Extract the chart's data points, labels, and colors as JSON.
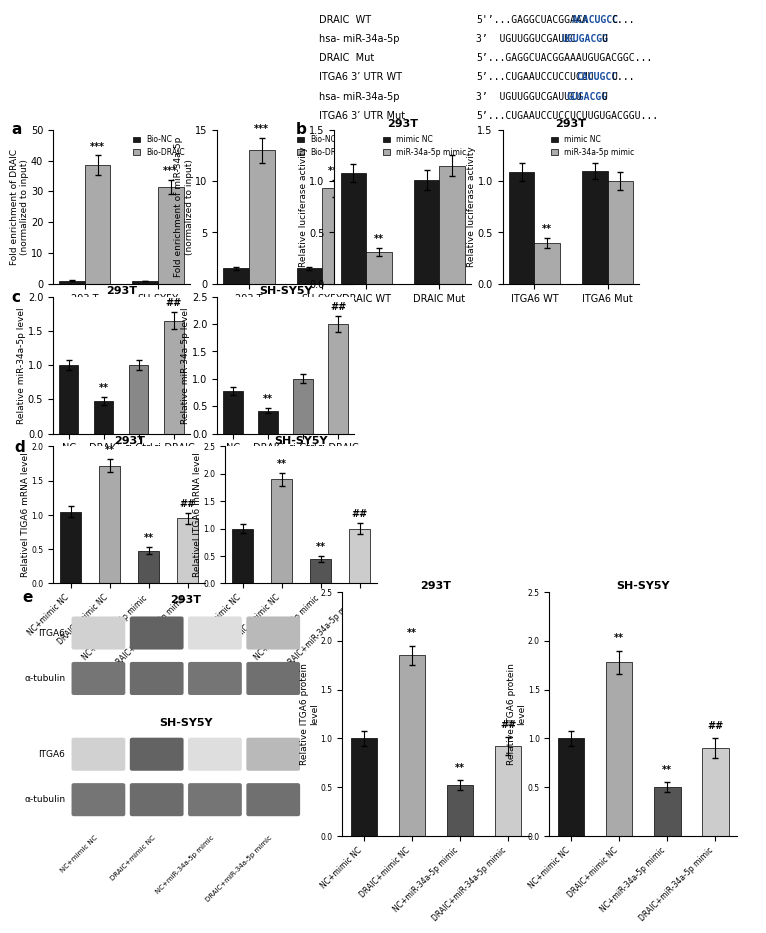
{
  "top_text_lines": [
    {
      "label": "DRAIC  WT",
      "prefix": "5'’...GAGGCUACGGAAA",
      "highlight": "ACACUGCC",
      "suffix": "C...",
      "hl_color": "#1a4fa0"
    },
    {
      "label": "hsa- miR-34a-5p",
      "prefix": "3’  UGUUGGUCGAUUC",
      "highlight": "UGUGACGG",
      "suffix": "U",
      "hl_color": "#1a4fa0"
    },
    {
      "label": "DRAIC  Mut",
      "prefix": "5’...GAGGCUACGGAAAUGUGACGGC...",
      "highlight": "",
      "suffix": "",
      "hl_color": "#1a4fa0"
    },
    {
      "label": "ITGA6 3’ UTR WT",
      "prefix": "5’...CUGAAUCCUCCUCUU",
      "highlight": "CACUGCC",
      "suffix": "U...",
      "hl_color": "#1a4fa0"
    },
    {
      "label": "hsa- miR-34a-5p",
      "prefix": "3’  UGUUGGUCGAUUCU",
      "highlight": "GUGACGG",
      "suffix": "U",
      "hl_color": "#1a4fa0"
    },
    {
      "label": "ITGA6 3’ UTR Mut",
      "prefix": "5’...CUGAAUCCUCCUCUUGUGACGGU...",
      "highlight": "",
      "suffix": "",
      "hl_color": "#1a4fa0"
    }
  ],
  "panel_a_left": {
    "ylabel": "Fold enrichment of DRAIC\n(normalized to input)",
    "groups": [
      "293 T",
      "SH-SY5Y"
    ],
    "bar0_label": "Bio-NC",
    "bar0_color": "#1a1a1a",
    "bar1_label": "Bio-DRAIC",
    "bar1_color": "#aaaaaa",
    "bar0_vals": [
      1.0,
      0.85
    ],
    "bar1_vals": [
      38.5,
      31.5
    ],
    "bar0_errs": [
      0.1,
      0.08
    ],
    "bar1_errs": [
      3.2,
      2.2
    ],
    "ylim": [
      0,
      50
    ],
    "yticks": [
      0,
      10,
      20,
      30,
      40,
      50
    ],
    "stars1": [
      "***",
      "***"
    ]
  },
  "panel_a_right": {
    "ylabel": "Fold enrichment of miR-34a-5p\n(normalized to input)",
    "groups": [
      "293 T",
      "SH-SY5Y"
    ],
    "bar0_label": "Bio-NC",
    "bar0_color": "#1a1a1a",
    "bar1_label": "Bio-DRAIC",
    "bar1_color": "#aaaaaa",
    "bar0_vals": [
      1.5,
      1.5
    ],
    "bar1_vals": [
      13.0,
      9.3
    ],
    "bar0_errs": [
      0.15,
      0.12
    ],
    "bar1_errs": [
      1.2,
      0.8
    ],
    "ylim": [
      0,
      15
    ],
    "yticks": [
      0,
      5,
      10,
      15
    ],
    "stars1": [
      "***",
      "***"
    ]
  },
  "panel_b_left": {
    "title": "293T",
    "ylabel": "Relative luciferase activity",
    "groups": [
      "DRAIC WT",
      "DRAIC Mut"
    ],
    "bar0_label": "mimic NC",
    "bar0_color": "#1a1a1a",
    "bar1_label": "miR-34a-5p mimic",
    "bar1_color": "#aaaaaa",
    "bar0_vals": [
      1.08,
      1.01
    ],
    "bar1_vals": [
      0.31,
      1.15
    ],
    "bar0_errs": [
      0.09,
      0.1
    ],
    "bar1_errs": [
      0.04,
      0.1
    ],
    "ylim": [
      0,
      1.5
    ],
    "yticks": [
      0.0,
      0.5,
      1.0,
      1.5
    ],
    "stars1": [
      "**",
      null
    ]
  },
  "panel_b_right": {
    "title": "293T",
    "ylabel": "Relative luciferase activity",
    "groups": [
      "ITGA6 WT",
      "ITGA6 Mut"
    ],
    "bar0_label": "mimic NC",
    "bar0_color": "#1a1a1a",
    "bar1_label": "miR-34a-5p mimic",
    "bar1_color": "#aaaaaa",
    "bar0_vals": [
      1.09,
      1.1
    ],
    "bar1_vals": [
      0.4,
      1.0
    ],
    "bar0_errs": [
      0.09,
      0.08
    ],
    "bar1_errs": [
      0.05,
      0.09
    ],
    "ylim": [
      0,
      1.5
    ],
    "yticks": [
      0.0,
      0.5,
      1.0,
      1.5
    ],
    "stars1": [
      "**",
      null
    ]
  },
  "panel_c_left": {
    "title": "293T",
    "ylabel": "Relative miR-34a-5p level",
    "groups": [
      "NC",
      "DRAIC",
      "si-Ctrl",
      "si-DRAIC"
    ],
    "colors": [
      "#1a1a1a",
      "#1a1a1a",
      "#888888",
      "#aaaaaa"
    ],
    "values": [
      1.0,
      0.48,
      1.0,
      1.65
    ],
    "errors": [
      0.07,
      0.06,
      0.07,
      0.12
    ],
    "stars": [
      null,
      "**",
      null,
      "##"
    ],
    "ylim": [
      0,
      2.0
    ],
    "yticks": [
      0.0,
      0.5,
      1.0,
      1.5,
      2.0
    ]
  },
  "panel_c_right": {
    "title": "SH-SY5Y",
    "ylabel": "Relative miR-34a-5p level",
    "groups": [
      "NC",
      "DRAIC",
      "si-Ctrl",
      "si-DRAIC"
    ],
    "colors": [
      "#1a1a1a",
      "#1a1a1a",
      "#888888",
      "#aaaaaa"
    ],
    "values": [
      0.78,
      0.42,
      1.0,
      2.0
    ],
    "errors": [
      0.07,
      0.05,
      0.08,
      0.15
    ],
    "stars": [
      null,
      "**",
      null,
      "##"
    ],
    "ylim": [
      0,
      2.5
    ],
    "yticks": [
      0.0,
      0.5,
      1.0,
      1.5,
      2.0,
      2.5
    ]
  },
  "panel_d_left": {
    "title": "293T",
    "ylabel": "Relativel TIGA6 mRNA level",
    "groups": [
      "NC+mimic NC",
      "DRAIC+mimic NC",
      "NC+miR-34a-5p mimic",
      "DRAIC+miR-34a-5p mimic"
    ],
    "colors": [
      "#1a1a1a",
      "#aaaaaa",
      "#555555",
      "#cccccc"
    ],
    "values": [
      1.05,
      1.72,
      0.48,
      0.95
    ],
    "errors": [
      0.08,
      0.1,
      0.05,
      0.08
    ],
    "stars": [
      null,
      "**",
      "**",
      "##"
    ],
    "ylim": [
      0,
      2.0
    ],
    "yticks": [
      0.0,
      0.5,
      1.0,
      1.5,
      2.0
    ]
  },
  "panel_d_right": {
    "title": "SH-SY5Y",
    "ylabel": "Relativel ITGA6 mRNA level",
    "groups": [
      "NC+mimic NC",
      "DRAIC+mimic NC",
      "NC+miR-34a-5p mimic",
      "DRAIC+miR-34a-5p mimic"
    ],
    "colors": [
      "#1a1a1a",
      "#aaaaaa",
      "#555555",
      "#cccccc"
    ],
    "values": [
      1.0,
      1.9,
      0.45,
      1.0
    ],
    "errors": [
      0.08,
      0.12,
      0.05,
      0.1
    ],
    "stars": [
      null,
      "**",
      "**",
      "##"
    ],
    "ylim": [
      0,
      2.5
    ],
    "yticks": [
      0.0,
      0.5,
      1.0,
      1.5,
      2.0,
      2.5
    ]
  },
  "panel_e_bar_left": {
    "title": "293T",
    "ylabel": "Relative ITGA6 protein\nlevel",
    "groups": [
      "NC+mimic NC",
      "DRAIC+mimic NC",
      "NC+miR-34a-5p mimic",
      "DRAIC+miR-34a-5p mimic"
    ],
    "colors": [
      "#1a1a1a",
      "#aaaaaa",
      "#555555",
      "#cccccc"
    ],
    "values": [
      1.0,
      1.85,
      0.52,
      0.92
    ],
    "errors": [
      0.08,
      0.1,
      0.05,
      0.09
    ],
    "stars": [
      null,
      "**",
      "**",
      "##"
    ],
    "ylim": [
      0,
      2.5
    ],
    "yticks": [
      0.0,
      0.5,
      1.0,
      1.5,
      2.0,
      2.5
    ]
  },
  "panel_e_bar_right": {
    "title": "SH-SY5Y",
    "ylabel": "Relative ITGA6 protein\nlevel",
    "groups": [
      "NC+mimic NC",
      "DRAIC+mimic NC",
      "NC+miR-34a-5p mimic",
      "DRAIC+miR-34a-5p mimic"
    ],
    "colors": [
      "#1a1a1a",
      "#aaaaaa",
      "#555555",
      "#cccccc"
    ],
    "values": [
      1.0,
      1.78,
      0.5,
      0.9
    ],
    "errors": [
      0.08,
      0.12,
      0.05,
      0.1
    ],
    "stars": [
      null,
      "**",
      "**",
      "##"
    ],
    "ylim": [
      0,
      2.5
    ],
    "yticks": [
      0.0,
      0.5,
      1.0,
      1.5,
      2.0,
      2.5
    ]
  },
  "wb_293T_ITGA6": [
    0.25,
    0.85,
    0.18,
    0.38
  ],
  "wb_293T_tubulin": [
    0.75,
    0.8,
    0.75,
    0.78
  ],
  "wb_SHSY5Y_ITGA6": [
    0.25,
    0.85,
    0.18,
    0.38
  ],
  "wb_SHSY5Y_tubulin": [
    0.75,
    0.8,
    0.75,
    0.78
  ],
  "wb_xlabels": [
    "NC+mimic NC",
    "DRAIC+mimic NC",
    "NC+miR-34a-5p mimic",
    "DRAIC+miR-34a-5p mimic"
  ],
  "blue": "#1a4fa0"
}
